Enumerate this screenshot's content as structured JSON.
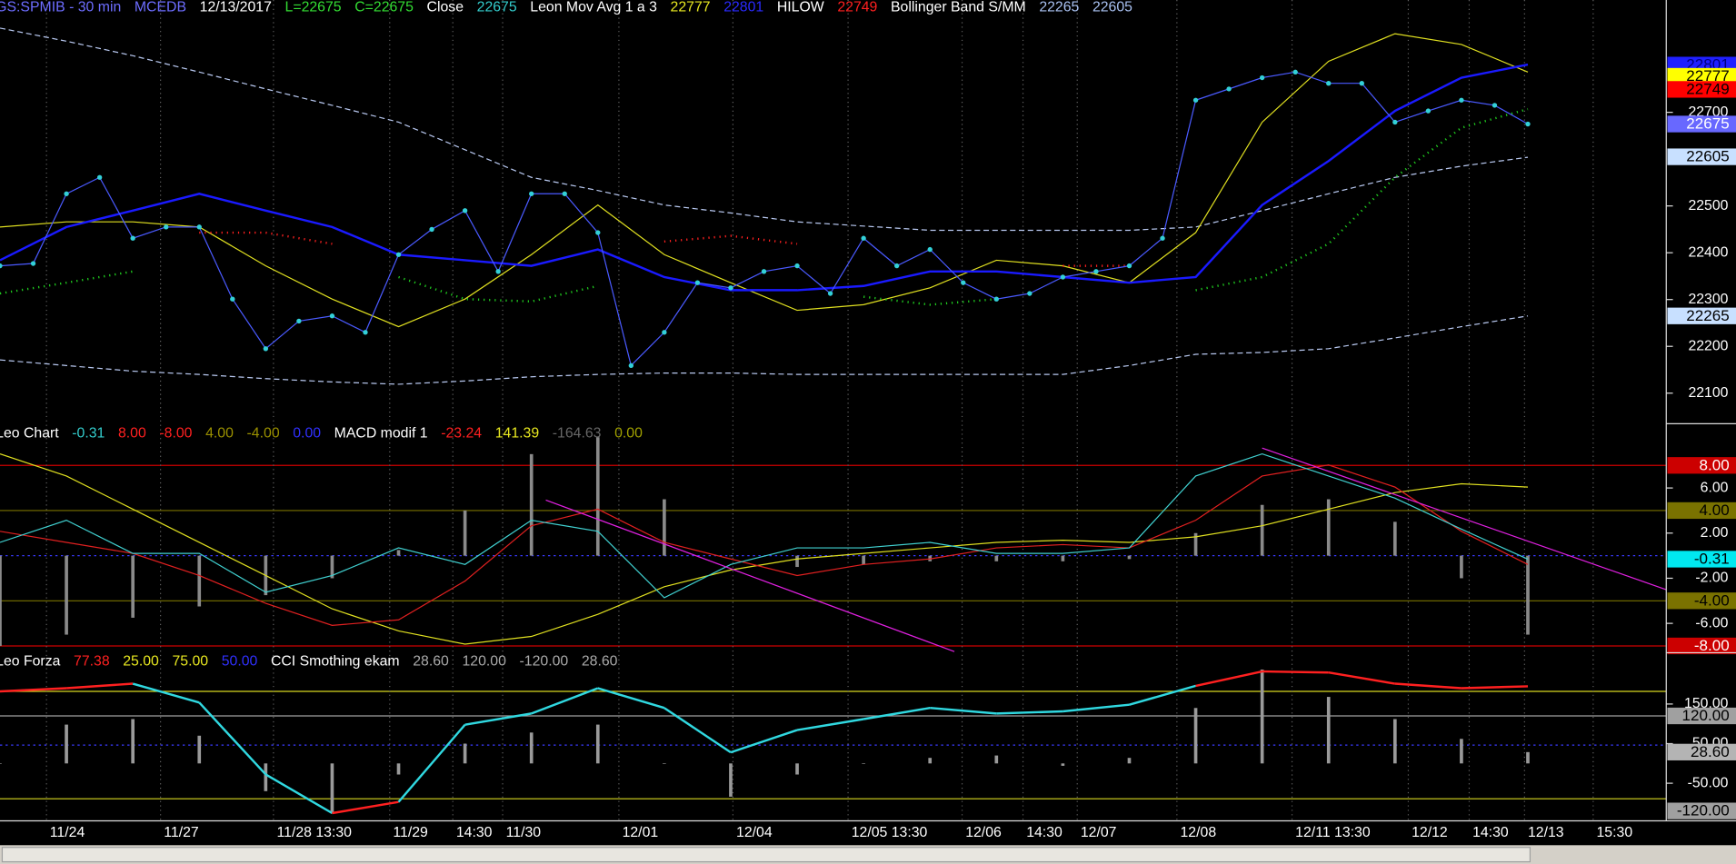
{
  "chart_data": [
    {
      "type": "line",
      "header": [
        {
          "text": "GS:SPMIB - 30 min",
          "color": "#6d6dff"
        },
        {
          "text": "MCEDB",
          "color": "#6d6dff"
        },
        {
          "text": "12/13/2017",
          "color": "#ffffff"
        },
        {
          "text": "L=22675",
          "color": "#33dd33"
        },
        {
          "text": "C=22675",
          "color": "#33dd33"
        },
        {
          "text": "Close",
          "color": "#ffffff"
        },
        {
          "text": "22675",
          "color": "#33cccc"
        },
        {
          "text": "Leon Mov Avg 1 a 3",
          "color": "#ffffff"
        },
        {
          "text": "22777",
          "color": "#e8e820"
        },
        {
          "text": "22801",
          "color": "#2a2aff"
        },
        {
          "text": "HILOW",
          "color": "#ffffff"
        },
        {
          "text": "22749",
          "color": "#ff2020"
        },
        {
          "text": "Bollinger Band S/MM",
          "color": "#ffffff"
        },
        {
          "text": "22265",
          "color": "#a8c0f0"
        },
        {
          "text": "22605",
          "color": "#a8c0f0"
        }
      ],
      "xlim": [
        0,
        150.5
      ],
      "ylim": [
        22030,
        22940
      ],
      "yticks": [
        22100,
        22200,
        22300,
        22400,
        22500,
        22700
      ],
      "x": [
        0,
        6,
        12,
        18,
        24,
        30,
        36,
        42,
        48,
        54,
        60,
        66,
        72,
        78,
        84,
        90,
        96,
        102,
        108,
        114,
        120,
        126,
        132,
        138
      ],
      "series": [
        {
          "type": "line",
          "color": "#b8c8f0",
          "dash": "5 3",
          "values": [
            22880,
            22852,
            22821,
            22786,
            22750,
            22715,
            22679,
            22620,
            22561,
            22533,
            22502,
            22485,
            22466,
            22457,
            22448,
            22448,
            22448,
            22448,
            22455,
            22490,
            22526,
            22561,
            22585,
            22604
          ]
        },
        {
          "type": "line",
          "color": "#b8c8f0",
          "dash": "5 3",
          "values": [
            22171,
            22159,
            22147,
            22140,
            22131,
            22124,
            22119,
            22126,
            22135,
            22140,
            22143,
            22143,
            22140,
            22140,
            22140,
            22140,
            22140,
            22159,
            22183,
            22187,
            22195,
            22218,
            22242,
            22265
          ]
        },
        {
          "type": "line",
          "color": "#e0e020",
          "values": [
            22455,
            22466,
            22466,
            22455,
            22372,
            22301,
            22242,
            22301,
            22396,
            22502,
            22396,
            22336,
            22277,
            22289,
            22325,
            22384,
            22372,
            22336,
            22443,
            22679,
            22809,
            22868,
            22845,
            22786
          ]
        },
        {
          "type": "line",
          "color": "#1a1aff",
          "width": 2,
          "values": [
            22384,
            22455,
            22490,
            22526,
            22490,
            22455,
            22396,
            22384,
            22372,
            22407,
            22348,
            22320,
            22320,
            22329,
            22360,
            22360,
            22348,
            22336,
            22348,
            22502,
            22596,
            22703,
            22774,
            22802
          ]
        },
        {
          "type": "line",
          "color": "#ff2020",
          "dash": "1 4",
          "width": 2,
          "values": [
            null,
            null,
            null,
            22443,
            22443,
            22419,
            null,
            null,
            null,
            null,
            22424,
            22436,
            22419,
            null,
            null,
            null,
            22372,
            22372,
            null,
            null,
            null,
            null,
            null,
            null
          ]
        },
        {
          "type": "line",
          "color": "#20d020",
          "dash": "1 4",
          "width": 2,
          "values": [
            22313,
            22336,
            22360,
            null,
            null,
            null,
            22348,
            22301,
            22296,
            22329,
            null,
            null,
            null,
            22306,
            22289,
            22301,
            null,
            null,
            22320,
            22348,
            22419,
            22561,
            22667,
            22707
          ]
        },
        {
          "type": "line",
          "color": "#4a5aff",
          "markers": true,
          "marker_color": "#33d0d8",
          "x": [
            0,
            3,
            6,
            9,
            12,
            15,
            18,
            21,
            24,
            27,
            30,
            33,
            36,
            39,
            42,
            45,
            48,
            51,
            54,
            57,
            60,
            63,
            66,
            69,
            72,
            75,
            78,
            81,
            84,
            87,
            90,
            93,
            96,
            99,
            102,
            105,
            108,
            111,
            114,
            117,
            120,
            123,
            126,
            129,
            132,
            135,
            138
          ],
          "values": [
            22372,
            22377,
            22526,
            22561,
            22431,
            22455,
            22455,
            22301,
            22195,
            22254,
            22265,
            22230,
            22396,
            22450,
            22490,
            22360,
            22526,
            22526,
            22443,
            22159,
            22230,
            22336,
            22325,
            22360,
            22372,
            22313,
            22431,
            22372,
            22407,
            22336,
            22301,
            22313,
            22348,
            22360,
            22372,
            22431,
            22726,
            22750,
            22774,
            22786,
            22762,
            22762,
            22679,
            22703,
            22726,
            22715,
            22675
          ]
        }
      ],
      "tags": [
        {
          "value": 22801,
          "color": "#2020ff",
          "text_color": "#000080"
        },
        {
          "value": 22777,
          "color": "#ffff00",
          "text_color": "#000000"
        },
        {
          "value": 22749,
          "color": "#ff0000",
          "text_color": "#000000"
        },
        {
          "value": 22675,
          "color": "#6868ff",
          "text_color": "#ffffff"
        },
        {
          "value": 22605,
          "color": "#c8e0ff",
          "text_color": "#000000"
        },
        {
          "value": 22265,
          "color": "#c8e0ff",
          "text_color": "#000000"
        }
      ]
    },
    {
      "type": "line",
      "header": [
        {
          "text": "Leo Chart",
          "color": "#ffffff"
        },
        {
          "text": "-0.31",
          "color": "#33cccc"
        },
        {
          "text": "8.00",
          "color": "#ff2020"
        },
        {
          "text": "-8.00",
          "color": "#ff2020"
        },
        {
          "text": "4.00",
          "color": "#9a9000"
        },
        {
          "text": "-4.00",
          "color": "#9a9000"
        },
        {
          "text": "0.00",
          "color": "#3030ff"
        },
        {
          "text": "MACD modif 1",
          "color": "#ffffff"
        },
        {
          "text": "-23.24",
          "color": "#ff2020"
        },
        {
          "text": "141.39",
          "color": "#e8e820"
        },
        {
          "text": "-164.63",
          "color": "#666666"
        },
        {
          "text": "0.00",
          "color": "#a0a000"
        }
      ],
      "xlim": [
        0,
        150.5
      ],
      "ylim": [
        -8.6,
        11.5
      ],
      "yticks": [
        {
          "value": 6,
          "label": "6.00"
        },
        {
          "value": 2,
          "label": "2.00"
        },
        {
          "value": -2,
          "label": "-2.00"
        },
        {
          "value": -6,
          "label": "-6.00"
        }
      ],
      "x": [
        0,
        6,
        12,
        18,
        24,
        30,
        36,
        42,
        48,
        54,
        60,
        66,
        72,
        78,
        84,
        90,
        96,
        102,
        108,
        114,
        120,
        126,
        132,
        138
      ],
      "levels": [
        {
          "value": 0,
          "color": "#3a3aff",
          "dash": "2 3"
        }
      ],
      "series": [
        {
          "type": "histogram",
          "color": "#8a8a8a",
          "values": [
            -8,
            -7,
            -5.5,
            -4.5,
            -3.5,
            -2,
            0.5,
            4,
            9,
            10.5,
            5,
            0,
            -1,
            -0.8,
            -0.5,
            -0.5,
            -0.5,
            -0.3,
            2,
            4.5,
            5,
            3,
            -2,
            -7
          ]
        },
        {
          "type": "line",
          "color": "#e0e020",
          "values": [
            9.02,
            7.06,
            4.12,
            1.18,
            -1.76,
            -4.71,
            -6.67,
            -7.84,
            -7.16,
            -5.2,
            -2.75,
            -1.27,
            -0.29,
            0.2,
            0.69,
            1.18,
            1.37,
            1.18,
            1.67,
            2.65,
            4.12,
            5.59,
            6.37,
            6.08
          ]
        },
        {
          "type": "line",
          "color": "#e02020",
          "values": [
            2.16,
            1.18,
            0.2,
            -1.76,
            -4.22,
            -6.18,
            -5.69,
            -2.25,
            2.65,
            4.12,
            1.18,
            -0.29,
            -1.76,
            -0.78,
            -0.29,
            0.69,
            0.98,
            0.69,
            3.14,
            7.06,
            8.04,
            6.08,
            2.16,
            -0.78
          ]
        },
        {
          "type": "line",
          "color": "#40d0d0",
          "values": [
            1.18,
            3.14,
            0.2,
            0.2,
            -3.24,
            -1.76,
            0.69,
            -0.78,
            3.14,
            2.16,
            -3.73,
            -0.78,
            0.69,
            0.69,
            1.18,
            0.2,
            0.2,
            0.69,
            7.06,
            9.02,
            7.06,
            5.1,
            2.35,
            -0.31
          ]
        }
      ],
      "tags": [
        {
          "value": 8,
          "label": "8.00",
          "color": "#cc0000",
          "text_color": "#ffffff",
          "line": true
        },
        {
          "value": 4,
          "label": "4.00",
          "color": "#7a7200",
          "text_color": "#000000",
          "line": true
        },
        {
          "value": -0.31,
          "label": "-0.31",
          "color": "#00e8f0",
          "text_color": "#000000"
        },
        {
          "value": -4,
          "label": "-4.00",
          "color": "#7a7200",
          "text_color": "#000000",
          "line": true
        },
        {
          "value": -8,
          "label": "-8.00",
          "color": "#cc0000",
          "text_color": "#ffffff",
          "line": true
        }
      ]
    },
    {
      "type": "line",
      "header": [
        {
          "text": "Leo Forza",
          "color": "#ffffff"
        },
        {
          "text": "77.38",
          "color": "#ff2020"
        },
        {
          "text": "25.00",
          "color": "#e8e820"
        },
        {
          "text": "75.00",
          "color": "#e8e820"
        },
        {
          "text": "50.00",
          "color": "#3030ff"
        },
        {
          "text": "CCI Smothing ekam",
          "color": "#ffffff"
        },
        {
          "text": "28.60",
          "color": "#aaaaaa"
        },
        {
          "text": "120.00",
          "color": "#aaaaaa"
        },
        {
          "text": "-120.00",
          "color": "#aaaaaa"
        },
        {
          "text": "28.60",
          "color": "#aaaaaa"
        }
      ],
      "xlim": [
        0,
        150.5
      ],
      "ylim": [
        -145,
        274
      ],
      "y2lim": [
        14.7,
        92
      ],
      "yticks": [
        {
          "value": 150,
          "label": "150.00"
        },
        {
          "value": 50,
          "label": "50.00"
        },
        {
          "value": -50,
          "label": "-50.00"
        }
      ],
      "xticks": [
        {
          "value": 4.2,
          "label": "11/24"
        },
        {
          "value": 14.5,
          "label": "11/27"
        },
        {
          "value": 24.7,
          "label": "11/28 13:30"
        },
        {
          "value": 35.2,
          "label": "11/29"
        },
        {
          "value": 40.9,
          "label": "14:30"
        },
        {
          "value": 45.4,
          "label": "11/30"
        },
        {
          "value": 55.9,
          "label": "12/01"
        },
        {
          "value": 66.2,
          "label": "12/04"
        },
        {
          "value": 76.6,
          "label": "12/05 13:30"
        },
        {
          "value": 86.9,
          "label": "12/06"
        },
        {
          "value": 92.4,
          "label": "14:30"
        },
        {
          "value": 97.3,
          "label": "12/07"
        },
        {
          "value": 106.3,
          "label": "12/08"
        },
        {
          "value": 116.7,
          "label": "12/11 13:30"
        },
        {
          "value": 127.2,
          "label": "12/12"
        },
        {
          "value": 132.7,
          "label": "14:30"
        },
        {
          "value": 137.7,
          "label": "12/13"
        },
        {
          "value": 143.9,
          "label": "15:30"
        }
      ],
      "x": [
        0,
        6,
        12,
        18,
        24,
        30,
        36,
        42,
        48,
        54,
        60,
        66,
        72,
        78,
        84,
        90,
        96,
        102,
        108,
        114,
        120,
        126,
        132,
        138
      ],
      "levels": [
        {
          "value": 75,
          "color": "#d8d820",
          "axis": "y2"
        },
        {
          "value": 25,
          "color": "#d8d820",
          "axis": "y2"
        },
        {
          "value": 50,
          "color": "#3a3aff",
          "dash": "2 3",
          "axis": "y2"
        }
      ],
      "series": [
        {
          "type": "histogram",
          "color": "#9a9a9a",
          "values": [
            0,
            98,
            112,
            70,
            -70,
            -126,
            -28,
            50,
            78,
            98,
            0,
            -84,
            -28,
            0,
            14,
            20,
            -6,
            14,
            140,
            237,
            168,
            112,
            62,
            28.6
          ]
        },
        {
          "type": "segments",
          "axis": "y2",
          "color": "#30d8e0",
          "over_color": "#ff2020",
          "thresholds": [
            25,
            75
          ],
          "width": 2,
          "values": [
            75,
            76.5,
            78.6,
            69.8,
            36.3,
            18.3,
            23.5,
            59.5,
            64.7,
            76.5,
            67.3,
            46.6,
            57,
            62.1,
            67.3,
            64.7,
            65.7,
            68.8,
            77.6,
            84.3,
            83.8,
            78.6,
            76.5,
            77.38
          ]
        }
      ],
      "tags": [
        {
          "value": 120,
          "label": "120.00",
          "color": "#a0a0a0",
          "text_color": "#000000",
          "line": true
        },
        {
          "value": 28.6,
          "label": "28.60",
          "color": "#b4b4b4",
          "text_color": "#000000"
        },
        {
          "value": -120,
          "label": "-120.00",
          "color": "#a0a0a0",
          "text_color": "#000000"
        }
      ]
    }
  ]
}
